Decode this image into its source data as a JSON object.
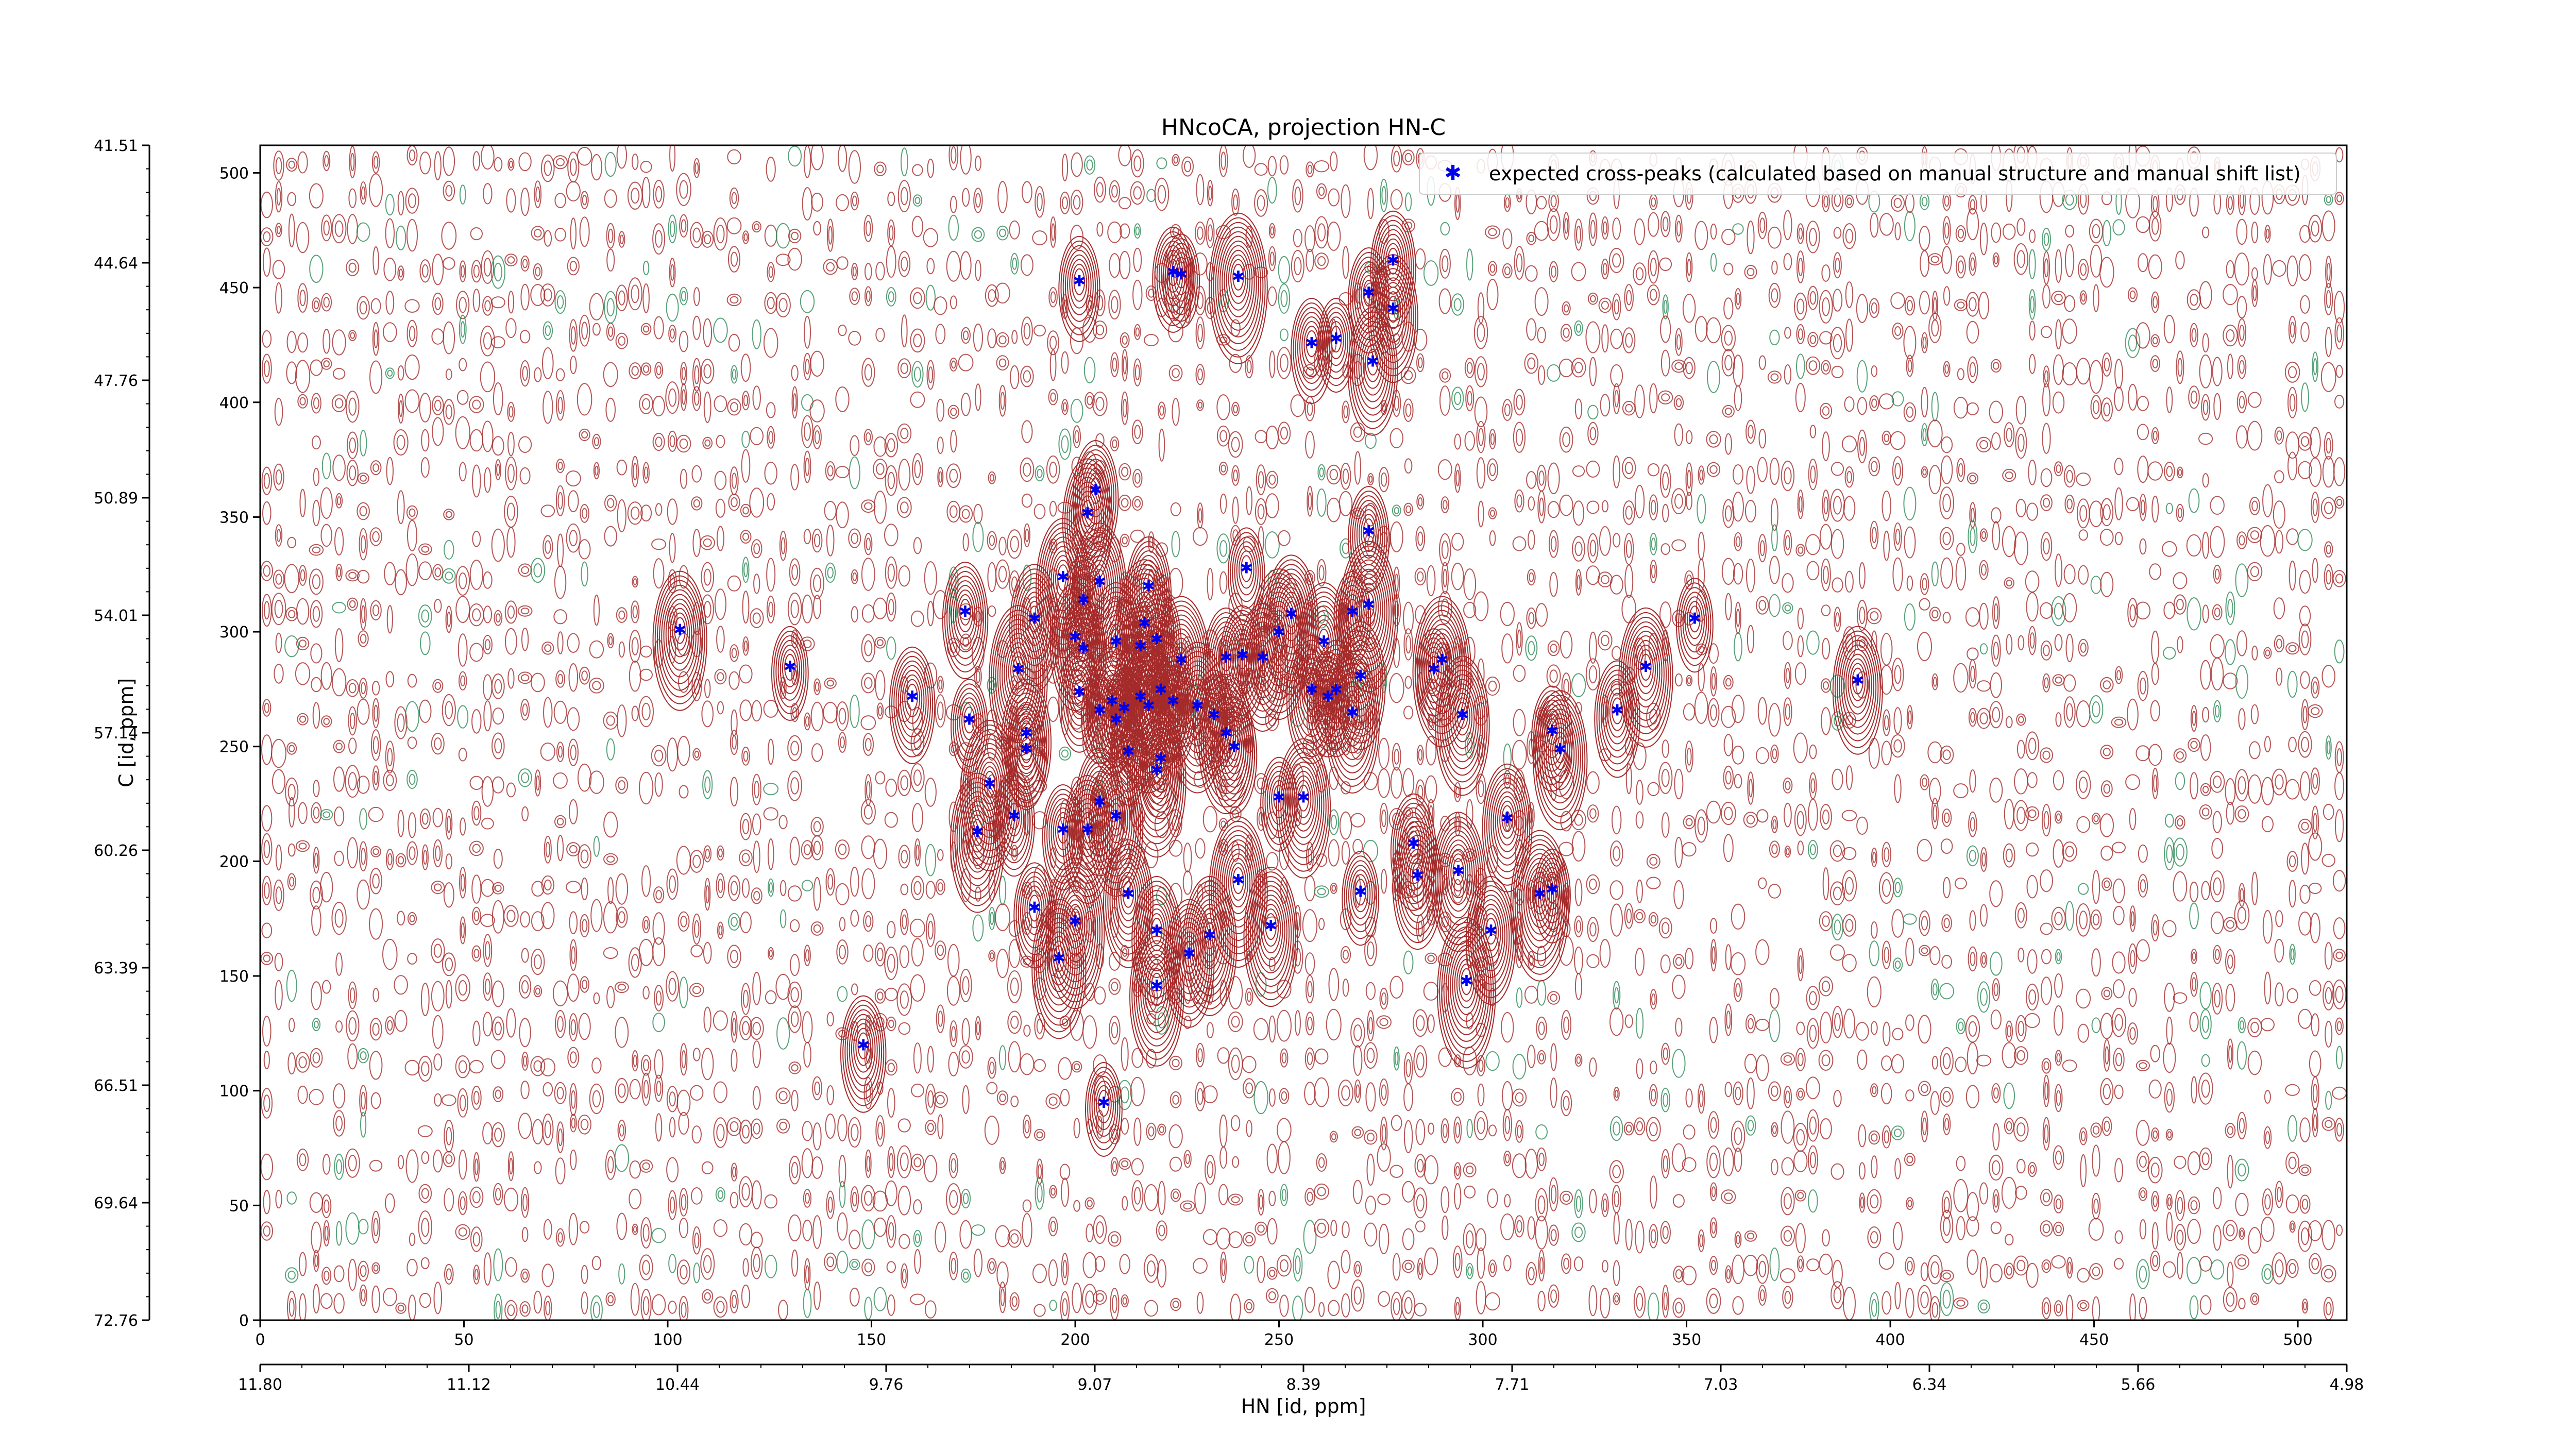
{
  "chart_data": {
    "type": "scatter",
    "title": "HNcoCA, projection HN-C",
    "xlabel": "HN [id, ppm]",
    "ylabel": "C [id, ppm]",
    "xlim": [
      0,
      512
    ],
    "ylim": [
      0,
      512
    ],
    "x_ticks_index": [
      "0",
      "50",
      "100",
      "150",
      "200",
      "250",
      "300",
      "350",
      "400",
      "450",
      "500"
    ],
    "x_ticks_ppm": [
      "11.80",
      "11.12",
      "10.44",
      "9.76",
      "9.07",
      "8.39",
      "7.71",
      "7.03",
      "6.34",
      "5.66",
      "4.98"
    ],
    "y_ticks_index": [
      "0",
      "50",
      "100",
      "150",
      "200",
      "250",
      "300",
      "350",
      "400",
      "450",
      "500"
    ],
    "y_ticks_ppm": [
      "72.76",
      "69.64",
      "66.51",
      "63.39",
      "60.26",
      "57.14",
      "54.01",
      "50.89",
      "47.76",
      "44.64",
      "41.51"
    ],
    "legend": {
      "position": "top-right",
      "label": "expected cross-peaks (calculated based on manual structure and manual shift list)"
    },
    "contour_colors": {
      "positive": "#a52a2a",
      "negative": "#2e8b57"
    },
    "marker_color": "#0000ee",
    "series": [
      {
        "name": "expected cross-peaks (calculated based on manual structure and manual shift list)",
        "points": [
          [
            201,
            453
          ],
          [
            224,
            457
          ],
          [
            226,
            456
          ],
          [
            240,
            455
          ],
          [
            272,
            448
          ],
          [
            278,
            462
          ],
          [
            278,
            441
          ],
          [
            264,
            428
          ],
          [
            258,
            426
          ],
          [
            273,
            418
          ],
          [
            205,
            362
          ],
          [
            203,
            352
          ],
          [
            272,
            344
          ],
          [
            242,
            328
          ],
          [
            173,
            309
          ],
          [
            197,
            324
          ],
          [
            206,
            322
          ],
          [
            218,
            320
          ],
          [
            202,
            314
          ],
          [
            190,
            306
          ],
          [
            200,
            298
          ],
          [
            202,
            293
          ],
          [
            217,
            304
          ],
          [
            272,
            312
          ],
          [
            268,
            309
          ],
          [
            250,
            300
          ],
          [
            261,
            296
          ],
          [
            220,
            297
          ],
          [
            216,
            294
          ],
          [
            210,
            296
          ],
          [
            103,
            301
          ],
          [
            130,
            285
          ],
          [
            160,
            272
          ],
          [
            186,
            284
          ],
          [
            201,
            274
          ],
          [
            209,
            270
          ],
          [
            226,
            288
          ],
          [
            237,
            289
          ],
          [
            246,
            289
          ],
          [
            270,
            281
          ],
          [
            264,
            275
          ],
          [
            290,
            288
          ],
          [
            288,
            284
          ],
          [
            258,
            275
          ],
          [
            262,
            272
          ],
          [
            268,
            265
          ],
          [
            253,
            308
          ],
          [
            241,
            290
          ],
          [
            340,
            285
          ],
          [
            352,
            306
          ],
          [
            392,
            279
          ],
          [
            333,
            266
          ],
          [
            317,
            257
          ],
          [
            319,
            249
          ],
          [
            295,
            264
          ],
          [
            212,
            267
          ],
          [
            216,
            272
          ],
          [
            218,
            268
          ],
          [
            221,
            275
          ],
          [
            224,
            270
          ],
          [
            230,
            268
          ],
          [
            234,
            264
          ],
          [
            237,
            256
          ],
          [
            239,
            250
          ],
          [
            210,
            262
          ],
          [
            206,
            266
          ],
          [
            174,
            262
          ],
          [
            188,
            256
          ],
          [
            188,
            249
          ],
          [
            179,
            234
          ],
          [
            176,
            213
          ],
          [
            185,
            220
          ],
          [
            197,
            214
          ],
          [
            203,
            214
          ],
          [
            206,
            226
          ],
          [
            210,
            220
          ],
          [
            220,
            240
          ],
          [
            221,
            245
          ],
          [
            213,
            248
          ],
          [
            250,
            228
          ],
          [
            256,
            228
          ],
          [
            306,
            219
          ],
          [
            283,
            208
          ],
          [
            284,
            194
          ],
          [
            294,
            196
          ],
          [
            240,
            192
          ],
          [
            248,
            172
          ],
          [
            213,
            186
          ],
          [
            220,
            170
          ],
          [
            228,
            160
          ],
          [
            233,
            168
          ],
          [
            190,
            180
          ],
          [
            200,
            174
          ],
          [
            196,
            158
          ],
          [
            220,
            146
          ],
          [
            296,
            148
          ],
          [
            314,
            186
          ],
          [
            317,
            188
          ],
          [
            302,
            170
          ],
          [
            270,
            187
          ],
          [
            148,
            120
          ],
          [
            207,
            95
          ]
        ]
      }
    ]
  }
}
